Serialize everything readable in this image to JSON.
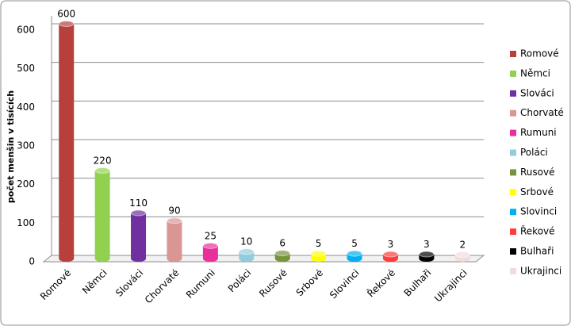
{
  "chart_data": {
    "type": "bar",
    "y_label": "počet menšin v tisících",
    "categories": [
      "Romové",
      "Němci",
      "Slováci",
      "Chorvaté",
      "Rumuni",
      "Poláci",
      "Rusové",
      "Srbové",
      "Slovinci",
      "Řekové",
      "Bulhaři",
      "Ukrajinci"
    ],
    "values": [
      600,
      220,
      110,
      90,
      25,
      10,
      6,
      5,
      5,
      3,
      3,
      2
    ],
    "colors": [
      "#b8403c",
      "#92d050",
      "#7030a0",
      "#d99694",
      "#e8309c",
      "#93cddd",
      "#77933c",
      "#ffff00",
      "#00b0f0",
      "#ff3b3b",
      "#000000",
      "#f2dcdb"
    ],
    "ylim": [
      0,
      600
    ],
    "yticks": [
      0,
      100,
      200,
      300,
      400,
      500,
      600
    ],
    "grid": true,
    "legend": "right"
  }
}
